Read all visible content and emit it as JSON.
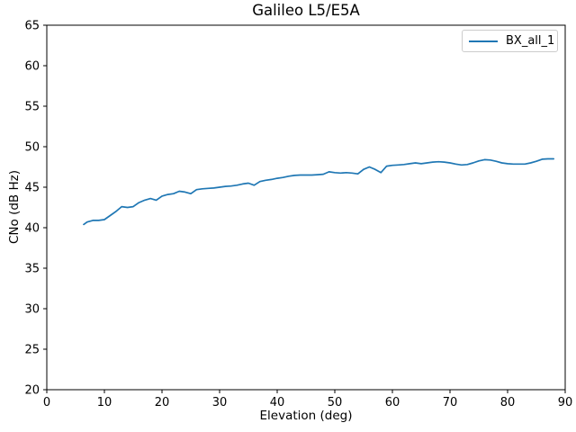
{
  "figure_title": "Galileo L5/E5A",
  "colors": {
    "line": "#1f77b4",
    "axis": "#000000",
    "legend_border": "#cccccc",
    "background": "#ffffff"
  },
  "chart_data": {
    "type": "line",
    "title": "Galileo L5/E5A",
    "xlabel": "Elevation (deg)",
    "ylabel": "CNo (dB Hz)",
    "xlim": [
      0,
      90
    ],
    "ylim": [
      20,
      65
    ],
    "xticks": [
      0,
      10,
      20,
      30,
      40,
      50,
      60,
      70,
      80,
      90
    ],
    "yticks": [
      20,
      25,
      30,
      35,
      40,
      45,
      50,
      55,
      60,
      65
    ],
    "grid": false,
    "legend": {
      "position": "upper right",
      "entries": [
        {
          "label": "BX_all_1",
          "color": "#1f77b4"
        }
      ]
    },
    "series": [
      {
        "name": "BX_all_1",
        "color": "#1f77b4",
        "x": [
          6.4,
          7,
          8,
          9,
          10,
          11,
          12,
          13,
          14,
          15,
          16,
          17,
          18,
          19,
          20,
          21,
          22,
          23,
          24,
          25,
          26,
          27,
          28,
          29,
          30,
          31,
          32,
          33,
          34,
          35,
          36,
          37,
          38,
          39,
          40,
          41,
          42,
          43,
          44,
          45,
          46,
          47,
          48,
          49,
          50,
          51,
          52,
          53,
          54,
          55,
          56,
          57,
          58,
          59,
          60,
          61,
          62,
          63,
          64,
          65,
          66,
          67,
          68,
          69,
          70,
          71,
          72,
          73,
          74,
          75,
          76,
          77,
          78,
          79,
          80,
          81,
          82,
          83,
          84,
          85,
          86,
          87,
          88
        ],
        "y": [
          40.4,
          40.7,
          40.9,
          40.9,
          41.0,
          41.5,
          42.0,
          42.6,
          42.5,
          42.6,
          43.1,
          43.4,
          43.6,
          43.4,
          43.9,
          44.1,
          44.2,
          44.5,
          44.4,
          44.2,
          44.7,
          44.8,
          44.85,
          44.9,
          45.0,
          45.1,
          45.15,
          45.25,
          45.4,
          45.5,
          45.25,
          45.7,
          45.85,
          45.95,
          46.1,
          46.2,
          46.35,
          46.45,
          46.5,
          46.5,
          46.5,
          46.55,
          46.6,
          46.9,
          46.8,
          46.75,
          46.8,
          46.75,
          46.65,
          47.2,
          47.5,
          47.2,
          46.8,
          47.6,
          47.7,
          47.75,
          47.8,
          47.9,
          48.0,
          47.9,
          48.0,
          48.1,
          48.15,
          48.1,
          48.0,
          47.85,
          47.75,
          47.8,
          48.0,
          48.25,
          48.4,
          48.35,
          48.2,
          48.0,
          47.9,
          47.85,
          47.85,
          47.85,
          48.0,
          48.2,
          48.45,
          48.5,
          48.5
        ]
      }
    ]
  }
}
